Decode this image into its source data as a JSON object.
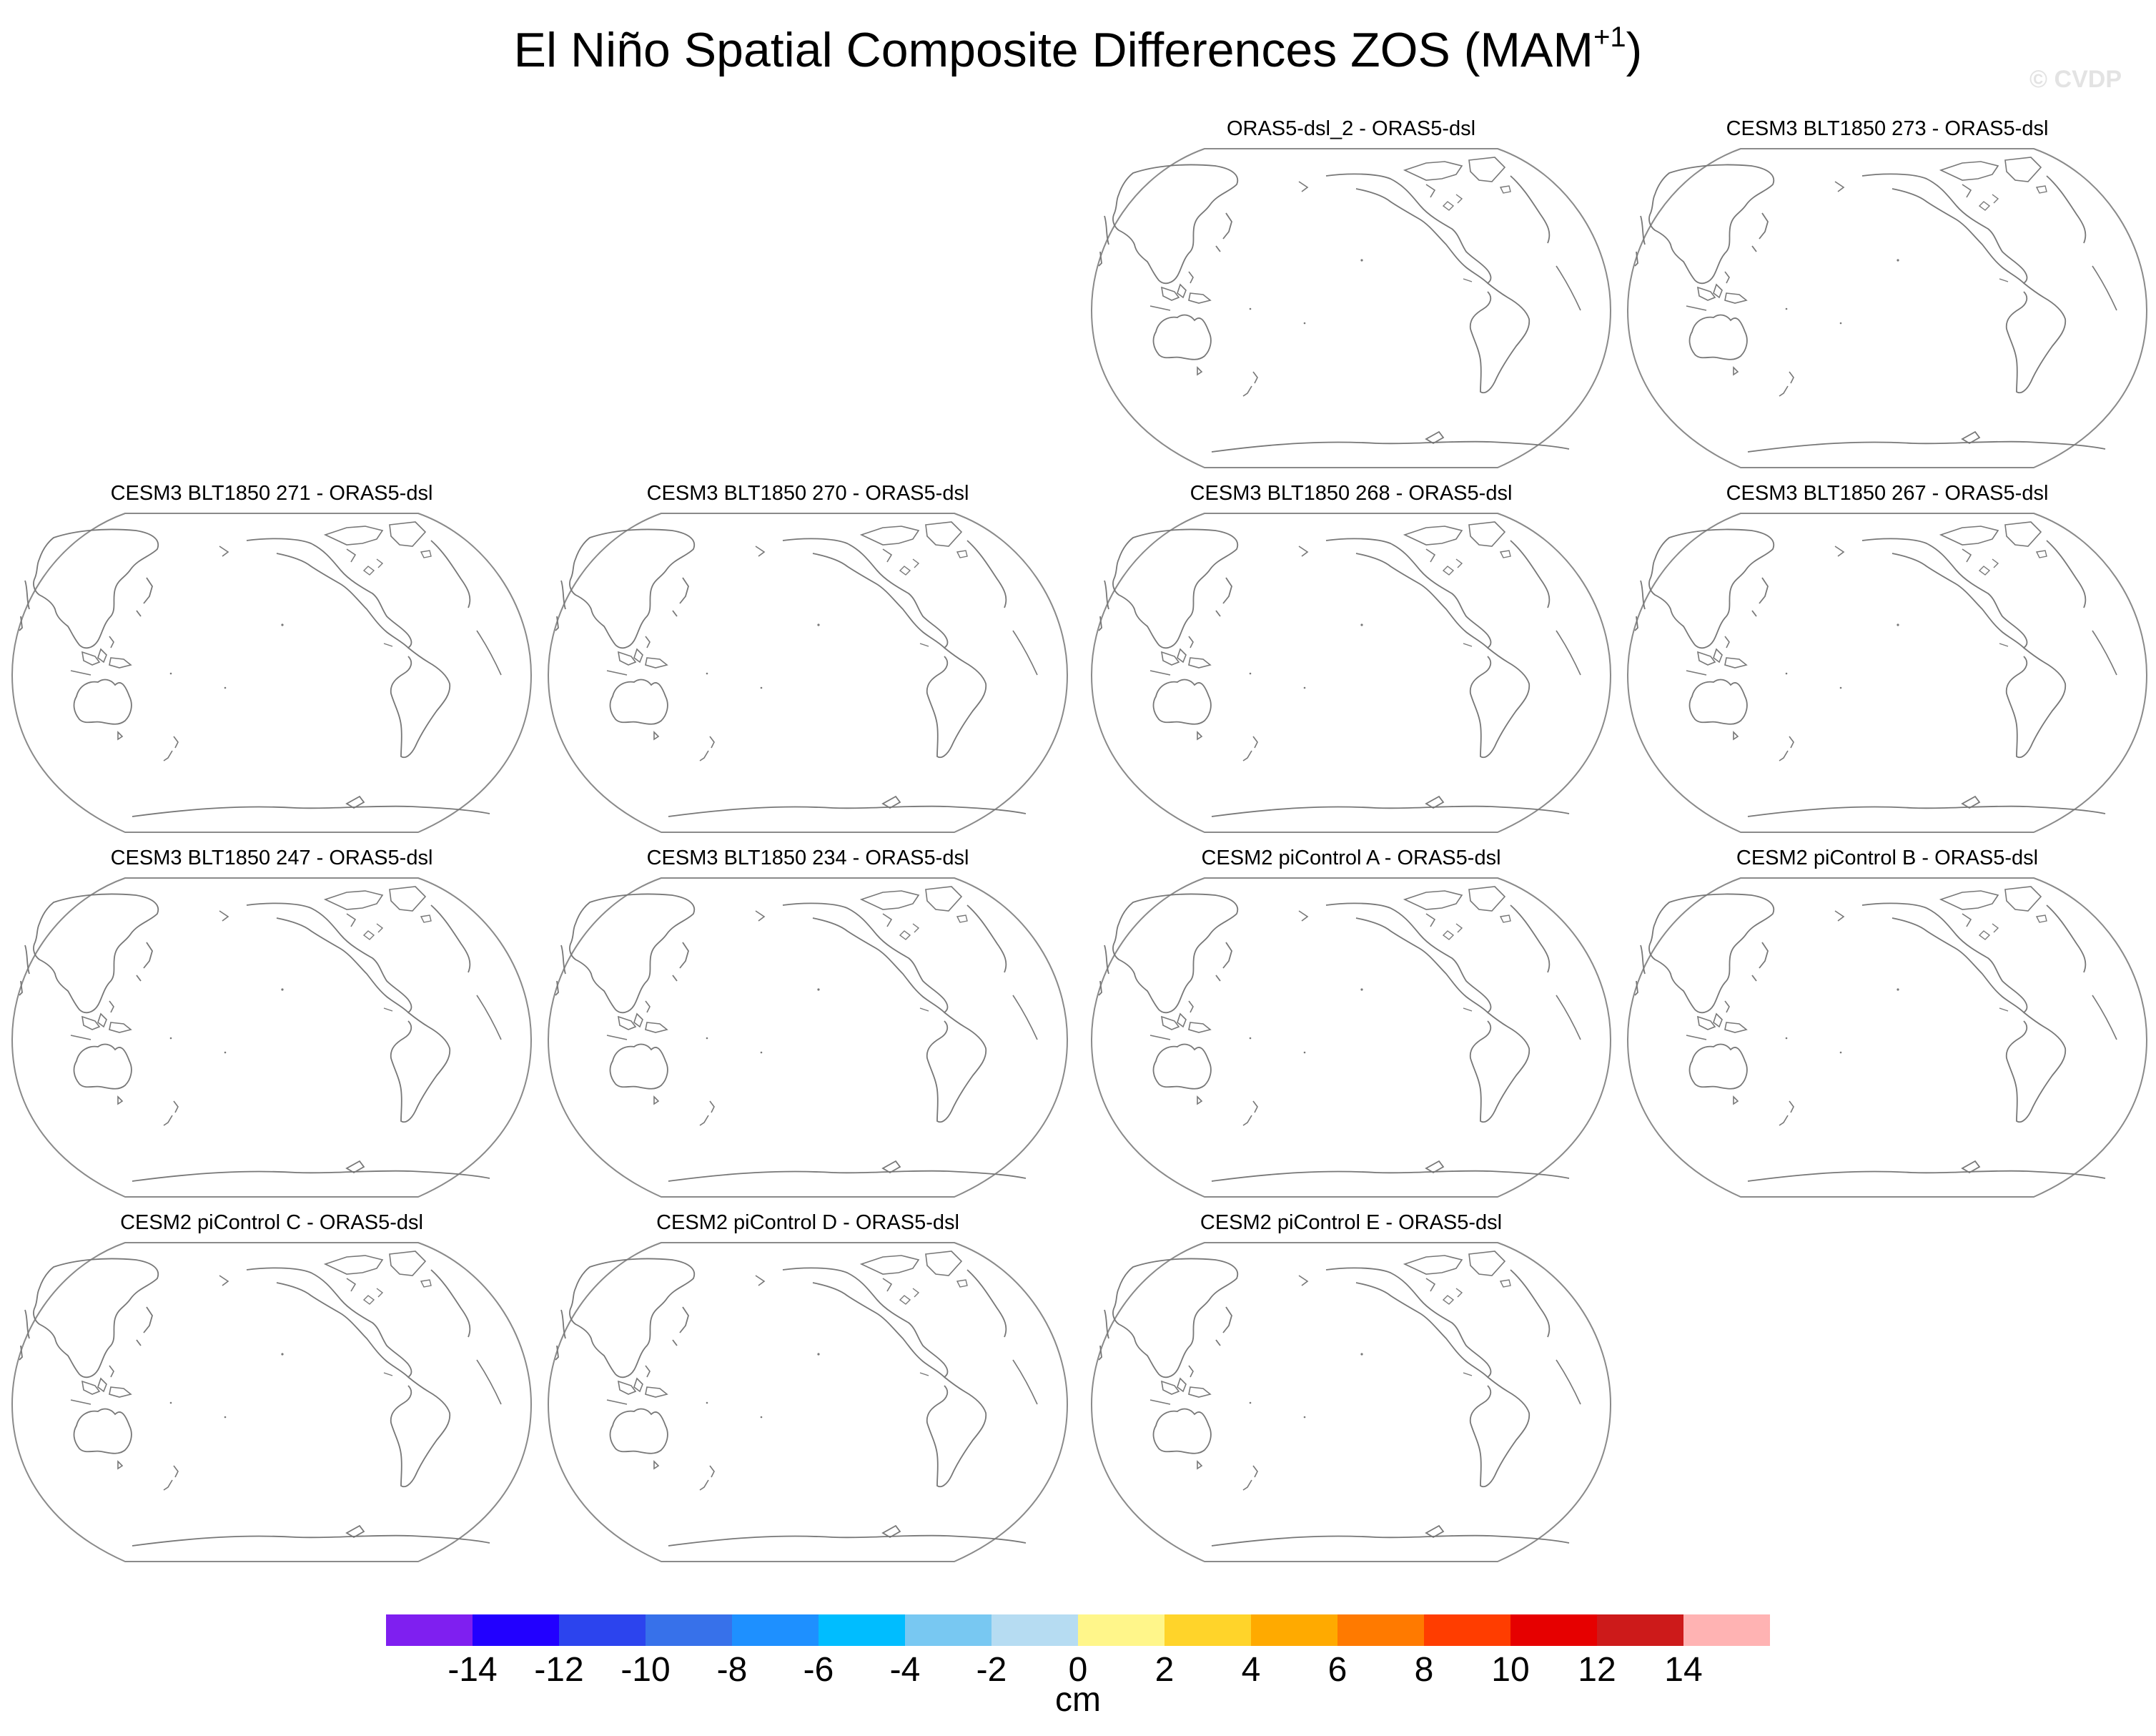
{
  "figure": {
    "title_main": "El Niño Spatial Composite Differences ZOS (MAM",
    "title_sup": "+1",
    "title_close": ")",
    "watermark": "© CVDP"
  },
  "panels": [
    {
      "label": "ORAS5-dsl_2 - ORAS5-dsl"
    },
    {
      "label": "CESM3 BLT1850 273 - ORAS5-dsl"
    },
    {
      "label": "CESM3 BLT1850 271 - ORAS5-dsl"
    },
    {
      "label": "CESM3 BLT1850 270 - ORAS5-dsl"
    },
    {
      "label": "CESM3 BLT1850 268 - ORAS5-dsl"
    },
    {
      "label": "CESM3 BLT1850 267 - ORAS5-dsl"
    },
    {
      "label": "CESM3 BLT1850 247 - ORAS5-dsl"
    },
    {
      "label": "CESM3 BLT1850 234 - ORAS5-dsl"
    },
    {
      "label": "CESM2 piControl A - ORAS5-dsl"
    },
    {
      "label": "CESM2 piControl B - ORAS5-dsl"
    },
    {
      "label": "CESM2 piControl C - ORAS5-dsl"
    },
    {
      "label": "CESM2 piControl D - ORAS5-dsl"
    },
    {
      "label": "CESM2 piControl E - ORAS5-dsl"
    }
  ],
  "colorbar": {
    "units": "cm",
    "labels": [
      "-14",
      "-12",
      "-10",
      "-8",
      "-6",
      "-4",
      "-2",
      "0",
      "2",
      "4",
      "6",
      "8",
      "10",
      "12",
      "14"
    ],
    "colors": [
      "#7f1ff0",
      "#2200ff",
      "#2c44ee",
      "#3771ea",
      "#1e90ff",
      "#00bdff",
      "#78c8f2",
      "#b6dcf2",
      "#fff68a",
      "#ffd42a",
      "#ffaa00",
      "#ff7a00",
      "#ff3d00",
      "#e60000",
      "#cd1a1a",
      "#ffb3b3"
    ]
  }
}
